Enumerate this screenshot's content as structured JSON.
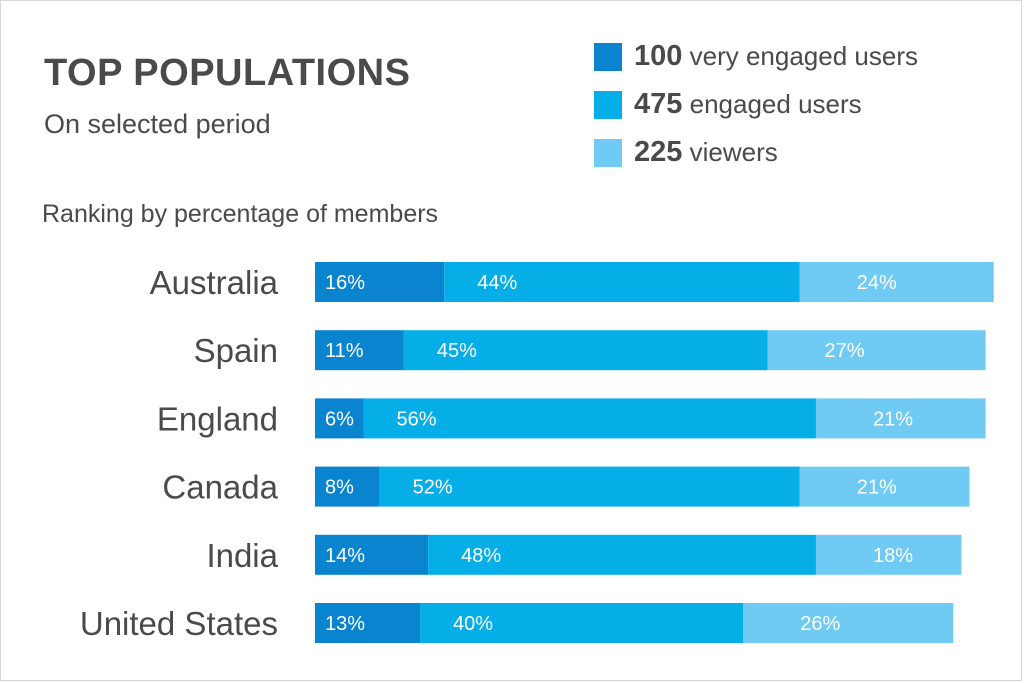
{
  "header": {
    "title": "TOP POPULATIONS",
    "subtitle": "On selected period",
    "ranking_label": "Ranking by percentage of members"
  },
  "legend": [
    {
      "count": "100",
      "label": "very engaged users",
      "color": "#0a84cf"
    },
    {
      "count": "475",
      "label": "engaged users",
      "color": "#06aee8"
    },
    {
      "count": "225",
      "label": "viewers",
      "color": "#6fcaf4"
    }
  ],
  "chart_data": {
    "type": "bar",
    "orientation": "horizontal",
    "stacked": true,
    "categories": [
      "Australia",
      "Spain",
      "England",
      "Canada",
      "India",
      "United States"
    ],
    "series": [
      {
        "name": "very engaged users",
        "color": "#0a84cf",
        "values": [
          16,
          11,
          6,
          8,
          14,
          13
        ],
        "labels": [
          "16%",
          "11%",
          "6%",
          "8%",
          "14%",
          "13%"
        ]
      },
      {
        "name": "engaged users",
        "color": "#06aee8",
        "values": [
          44,
          45,
          56,
          52,
          48,
          40
        ],
        "labels": [
          "44%",
          "45%",
          "56%",
          "52%",
          "48%",
          "40%"
        ]
      },
      {
        "name": "viewers",
        "color": "#6fcaf4",
        "values": [
          24,
          27,
          21,
          21,
          18,
          26
        ],
        "labels": [
          "24%",
          "27%",
          "21%",
          "21%",
          "18%",
          "26%"
        ]
      }
    ],
    "grid": false,
    "legend_position": "top-right"
  }
}
